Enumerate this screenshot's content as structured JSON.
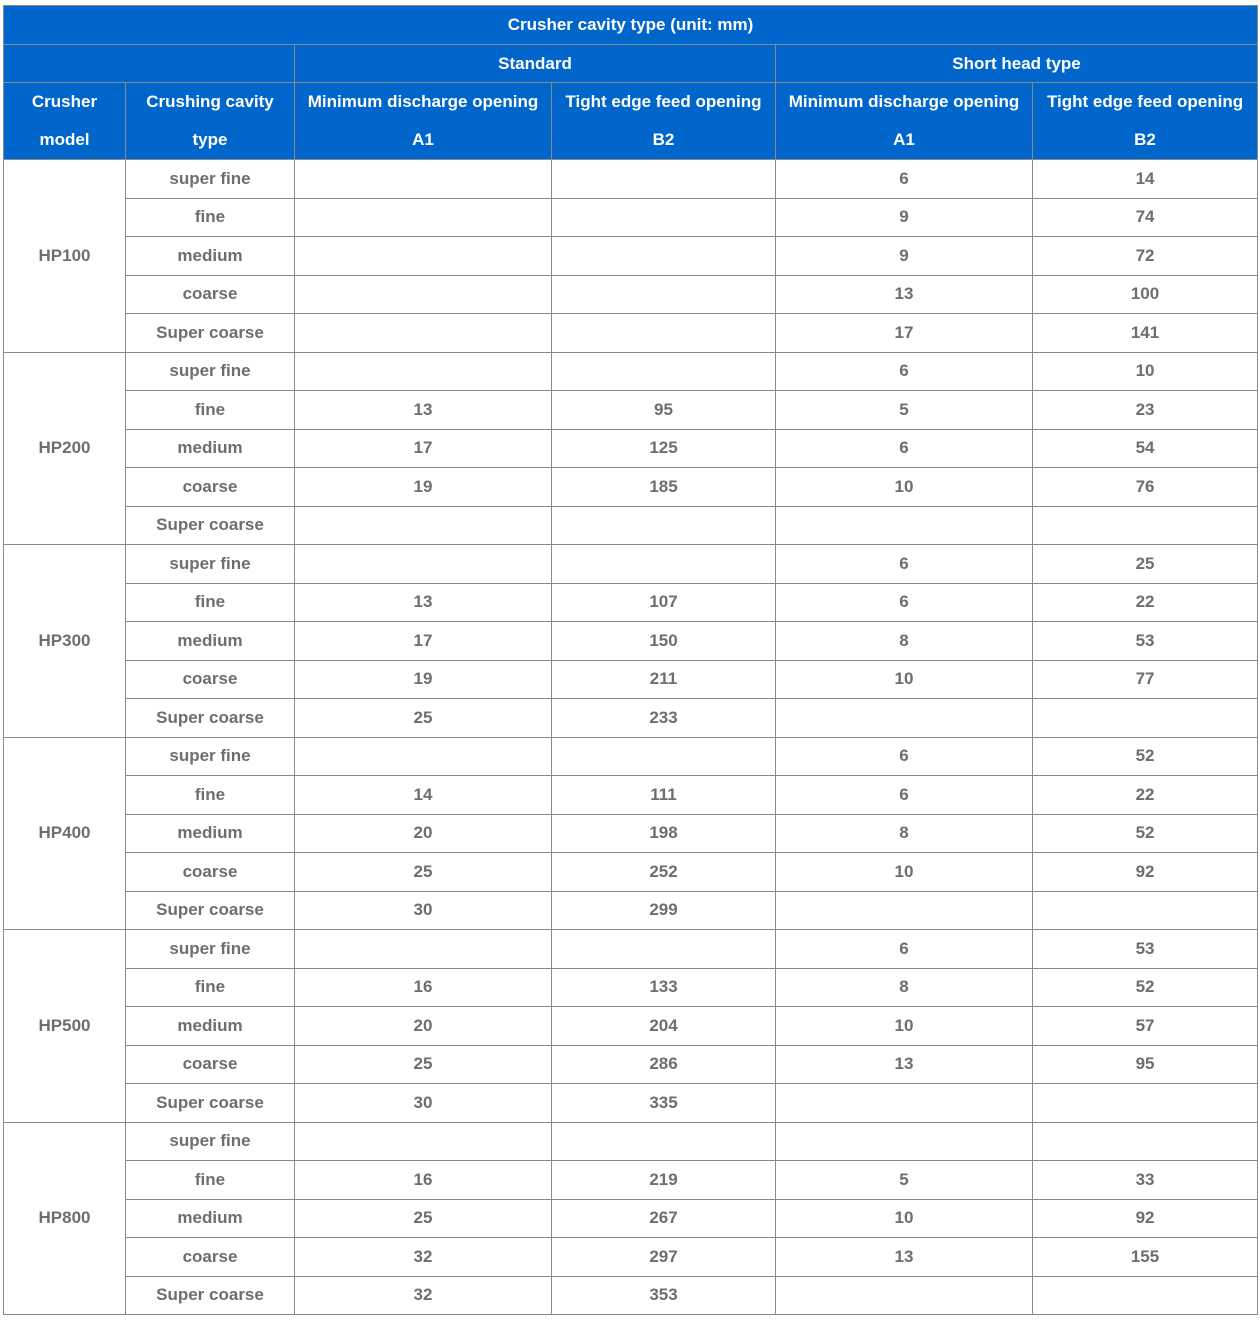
{
  "table": {
    "title": "Crusher cavity type (unit: mm)",
    "groups": [
      "Standard",
      "Short head type"
    ],
    "columns": [
      {
        "line1": "Crusher",
        "line2": "model"
      },
      {
        "line1": "Crushing cavity",
        "line2": "type"
      },
      {
        "line1": "Minimum discharge opening",
        "line2": "A1"
      },
      {
        "line1": "Tight edge feed opening",
        "line2": "B2"
      },
      {
        "line1": "Minimum discharge opening",
        "line2": "A1"
      },
      {
        "line1": "Tight edge feed opening",
        "line2": "B2"
      }
    ],
    "models": [
      {
        "model": "HP100",
        "rows": [
          [
            "super fine",
            "",
            "",
            "6",
            "14"
          ],
          [
            "fine",
            "",
            "",
            "9",
            "74"
          ],
          [
            "medium",
            "",
            "",
            "9",
            "72"
          ],
          [
            "coarse",
            "",
            "",
            "13",
            "100"
          ],
          [
            "Super coarse",
            "",
            "",
            "17",
            "141"
          ]
        ]
      },
      {
        "model": "HP200",
        "rows": [
          [
            "super fine",
            "",
            "",
            "6",
            "10"
          ],
          [
            "fine",
            "13",
            "95",
            "5",
            "23"
          ],
          [
            "medium",
            "17",
            "125",
            "6",
            "54"
          ],
          [
            "coarse",
            "19",
            "185",
            "10",
            "76"
          ],
          [
            "Super coarse",
            "",
            "",
            "",
            ""
          ]
        ]
      },
      {
        "model": "HP300",
        "rows": [
          [
            "super fine",
            "",
            "",
            "6",
            "25"
          ],
          [
            "fine",
            "13",
            "107",
            "6",
            "22"
          ],
          [
            "medium",
            "17",
            "150",
            "8",
            "53"
          ],
          [
            "coarse",
            "19",
            "211",
            "10",
            "77"
          ],
          [
            "Super coarse",
            "25",
            "233",
            "",
            ""
          ]
        ]
      },
      {
        "model": "HP400",
        "rows": [
          [
            "super fine",
            "",
            "",
            "6",
            "52"
          ],
          [
            "fine",
            "14",
            "111",
            "6",
            "22"
          ],
          [
            "medium",
            "20",
            "198",
            "8",
            "52"
          ],
          [
            "coarse",
            "25",
            "252",
            "10",
            "92"
          ],
          [
            "Super coarse",
            "30",
            "299",
            "",
            ""
          ]
        ]
      },
      {
        "model": "HP500",
        "rows": [
          [
            "super fine",
            "",
            "",
            "6",
            "53"
          ],
          [
            "fine",
            "16",
            "133",
            "8",
            "52"
          ],
          [
            "medium",
            "20",
            "204",
            "10",
            "57"
          ],
          [
            "coarse",
            "25",
            "286",
            "13",
            "95"
          ],
          [
            "Super coarse",
            "30",
            "335",
            "",
            ""
          ]
        ]
      },
      {
        "model": "HP800",
        "rows": [
          [
            "super fine",
            "",
            "",
            "",
            ""
          ],
          [
            "fine",
            "16",
            "219",
            "5",
            "33"
          ],
          [
            "medium",
            "25",
            "267",
            "10",
            "92"
          ],
          [
            "coarse",
            "32",
            "297",
            "13",
            "155"
          ],
          [
            "Super coarse",
            "32",
            "353",
            "",
            ""
          ]
        ]
      }
    ]
  },
  "colors": {
    "header_bg": "#0066cc",
    "header_text": "#ffffff",
    "cell_text": "#6e6e6e",
    "border": "#8a8a8a"
  }
}
